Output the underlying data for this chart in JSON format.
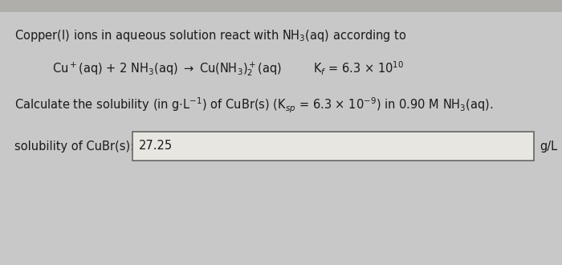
{
  "bg_color": "#c8c8c8",
  "panel_color": "#e0ddd8",
  "text_color": "#1a1a1a",
  "box_edge_color": "#666666",
  "box_fill_color": "#e8e6e0",
  "line1": "Copper(I) ions in aqueous solution react with NH$_3$(aq) according to",
  "eq_text": "Cu$^+$(aq) + 2 NH$_3$(aq) $\\rightarrow$ Cu(NH$_3$)$_2^+$(aq)",
  "kf_text": "K$_f$ = 6.3 $\\times$ 10$^{10}$",
  "calc_text": "Calculate the solubility (in g$\\cdot$L$^{-1}$) of CuBr(s) (K$_{sp}$ = 6.3 $\\times$ 10$^{-9}$) in 0.90 M NH$_3$(aq).",
  "label_text": "solubility of CuBr(s):",
  "answer_value": "27.25",
  "unit_text": "g/L",
  "font_size_main": 10.5,
  "font_size_answer": 10.5
}
